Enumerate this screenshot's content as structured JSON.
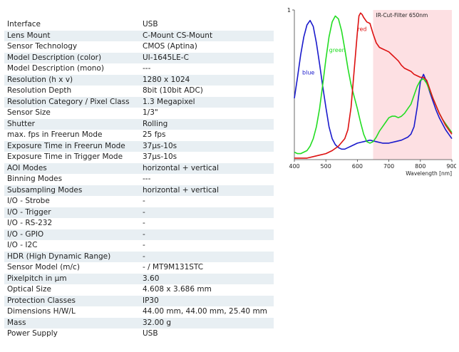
{
  "specs": [
    {
      "label": "Interface",
      "value": "USB"
    },
    {
      "label": "Lens Mount",
      "value": "C-Mount CS-Mount"
    },
    {
      "label": "Sensor Technology",
      "value": "CMOS (Aptina)"
    },
    {
      "label": "Model Description (color)",
      "value": "UI-1645LE-C"
    },
    {
      "label": "Model Description (mono)",
      "value": "---"
    },
    {
      "label": "Resolution (h x v)",
      "value": "1280 x 1024"
    },
    {
      "label": "Resolution Depth",
      "value": "8bit (10bit ADC)"
    },
    {
      "label": "Resolution Category / Pixel Class",
      "value": "1.3 Megapixel"
    },
    {
      "label": "Sensor Size",
      "value": "1/3\""
    },
    {
      "label": "Shutter",
      "value": "Rolling"
    },
    {
      "label": "max. fps in Freerun Mode",
      "value": "25 fps"
    },
    {
      "label": "Exposure Time in Freerun Mode",
      "value": "37µs-10s"
    },
    {
      "label": "Exposure Time in Trigger Mode",
      "value": "37µs-10s"
    },
    {
      "label": "AOI Modes",
      "value": "horizontal + vertical"
    },
    {
      "label": "Binning Modes",
      "value": "---"
    },
    {
      "label": "Subsampling Modes",
      "value": "horizontal + vertical"
    },
    {
      "label": "I/O - Strobe",
      "value": "-"
    },
    {
      "label": "I/O - Trigger",
      "value": "-"
    },
    {
      "label": "I/O - RS-232",
      "value": "-"
    },
    {
      "label": "I/O - GPIO",
      "value": "-"
    },
    {
      "label": "I/O - I2C",
      "value": "-"
    },
    {
      "label": "HDR (High Dynamic Range)",
      "value": "-"
    },
    {
      "label": "Sensor Model (m/c)",
      "value": "- / MT9M131STC"
    },
    {
      "label": "Pixelpitch in µm",
      "value": "3.60"
    },
    {
      "label": "Optical Size",
      "value": "4.608 x 3.686 mm"
    },
    {
      "label": "Protection Classes",
      "value": "IP30"
    },
    {
      "label": "Dimensions H/W/L",
      "value": "44.00 mm, 44.00 mm, 25.40 mm"
    },
    {
      "label": "Mass",
      "value": "32.00 g"
    },
    {
      "label": "Power Supply",
      "value": "USB"
    }
  ],
  "chart_data": {
    "type": "line",
    "title": "",
    "xlabel": "Wavelength [nm]",
    "ylabel": "",
    "xlim": [
      400,
      900
    ],
    "ylim": [
      0,
      1
    ],
    "x_ticks": [
      400,
      500,
      600,
      700,
      800,
      900
    ],
    "y_ticks": [
      1
    ],
    "y_tick_labels": [
      "1"
    ],
    "grid": false,
    "annotation": {
      "label": "IR-Cut-Filter 650nm",
      "x_start": 650,
      "x_end": 900,
      "color": "#fde0e3"
    },
    "series": [
      {
        "name": "blue",
        "color": "#1a1acc",
        "x": [
          400,
          410,
          420,
          430,
          440,
          450,
          460,
          470,
          480,
          490,
          500,
          510,
          520,
          530,
          540,
          550,
          560,
          570,
          580,
          590,
          600,
          620,
          640,
          660,
          680,
          700,
          720,
          740,
          760,
          770,
          780,
          790,
          800,
          810,
          820,
          830,
          840,
          850,
          860,
          870,
          880,
          890,
          900
        ],
        "values": [
          0.41,
          0.55,
          0.7,
          0.82,
          0.9,
          0.93,
          0.89,
          0.78,
          0.64,
          0.49,
          0.35,
          0.22,
          0.14,
          0.1,
          0.08,
          0.07,
          0.07,
          0.08,
          0.09,
          0.1,
          0.11,
          0.12,
          0.13,
          0.12,
          0.11,
          0.11,
          0.12,
          0.13,
          0.15,
          0.17,
          0.22,
          0.35,
          0.52,
          0.57,
          0.52,
          0.45,
          0.39,
          0.33,
          0.28,
          0.24,
          0.2,
          0.17,
          0.14
        ]
      },
      {
        "name": "green",
        "color": "#22dd22",
        "x": [
          400,
          410,
          420,
          430,
          440,
          450,
          460,
          470,
          480,
          490,
          500,
          510,
          520,
          530,
          540,
          550,
          560,
          570,
          580,
          590,
          600,
          610,
          620,
          630,
          640,
          650,
          660,
          670,
          680,
          690,
          700,
          710,
          720,
          730,
          740,
          750,
          760,
          770,
          780,
          790,
          800,
          810,
          820,
          830,
          840,
          850,
          860,
          870,
          880,
          890,
          900
        ],
        "values": [
          0.05,
          0.04,
          0.04,
          0.05,
          0.06,
          0.09,
          0.14,
          0.22,
          0.34,
          0.5,
          0.67,
          0.82,
          0.92,
          0.96,
          0.94,
          0.86,
          0.74,
          0.61,
          0.5,
          0.42,
          0.34,
          0.25,
          0.17,
          0.12,
          0.11,
          0.12,
          0.15,
          0.19,
          0.22,
          0.25,
          0.28,
          0.29,
          0.29,
          0.28,
          0.29,
          0.31,
          0.34,
          0.37,
          0.43,
          0.49,
          0.53,
          0.54,
          0.51,
          0.46,
          0.41,
          0.36,
          0.31,
          0.27,
          0.24,
          0.21,
          0.18
        ]
      },
      {
        "name": "red",
        "color": "#dd1111",
        "x": [
          400,
          420,
          440,
          460,
          480,
          500,
          520,
          540,
          560,
          570,
          580,
          590,
          600,
          605,
          610,
          615,
          620,
          630,
          640,
          650,
          660,
          670,
          680,
          690,
          700,
          710,
          720,
          730,
          740,
          750,
          760,
          770,
          780,
          790,
          800,
          810,
          820,
          830,
          840,
          850,
          860,
          870,
          880,
          890,
          900
        ],
        "values": [
          0.01,
          0.01,
          0.01,
          0.02,
          0.03,
          0.04,
          0.06,
          0.09,
          0.14,
          0.2,
          0.35,
          0.6,
          0.85,
          0.96,
          0.98,
          0.97,
          0.95,
          0.92,
          0.91,
          0.84,
          0.78,
          0.75,
          0.74,
          0.73,
          0.72,
          0.7,
          0.68,
          0.66,
          0.63,
          0.61,
          0.6,
          0.59,
          0.57,
          0.56,
          0.55,
          0.55,
          0.53,
          0.47,
          0.41,
          0.36,
          0.31,
          0.27,
          0.23,
          0.2,
          0.17
        ]
      }
    ],
    "series_labels": [
      {
        "series": "blue",
        "text": "blue",
        "x": 425,
        "y": 0.57
      },
      {
        "series": "green",
        "text": "green",
        "x": 510,
        "y": 0.72
      },
      {
        "series": "red",
        "text": "red",
        "x": 600,
        "y": 0.86
      }
    ]
  }
}
